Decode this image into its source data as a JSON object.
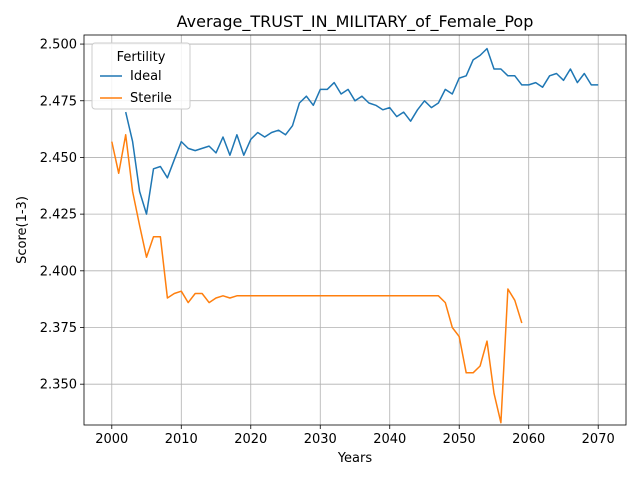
{
  "chart_data": {
    "type": "line",
    "title": "Average_TRUST_IN_MILITARY_of_Female_Pop",
    "xlabel": "Years",
    "ylabel": "Score(1-3)",
    "xlim": [
      1996,
      2074
    ],
    "ylim": [
      2.332,
      2.504
    ],
    "xticks": [
      2000,
      2010,
      2020,
      2030,
      2040,
      2050,
      2060,
      2070
    ],
    "yticks": [
      2.35,
      2.375,
      2.4,
      2.425,
      2.45,
      2.475,
      2.5
    ],
    "ytick_labels": [
      "2.350",
      "2.375",
      "2.400",
      "2.425",
      "2.450",
      "2.475",
      "2.500"
    ],
    "grid": true,
    "legend": {
      "title": "Fertility",
      "placement": "upper-left"
    },
    "series": [
      {
        "name": "Ideal",
        "color": "#1f77b4",
        "x": [
          2002,
          2003,
          2004,
          2005,
          2006,
          2007,
          2008,
          2009,
          2010,
          2011,
          2012,
          2013,
          2014,
          2015,
          2016,
          2017,
          2018,
          2019,
          2020,
          2021,
          2022,
          2023,
          2024,
          2025,
          2026,
          2027,
          2028,
          2029,
          2030,
          2031,
          2032,
          2033,
          2034,
          2035,
          2036,
          2037,
          2038,
          2039,
          2040,
          2041,
          2042,
          2043,
          2044,
          2045,
          2046,
          2047,
          2048,
          2049,
          2050,
          2051,
          2052,
          2053,
          2054,
          2055,
          2056,
          2057,
          2058,
          2059,
          2060,
          2061,
          2062,
          2063,
          2064,
          2065,
          2066,
          2067,
          2068,
          2069,
          2070
        ],
        "y": [
          2.47,
          2.457,
          2.435,
          2.425,
          2.445,
          2.446,
          2.441,
          2.449,
          2.457,
          2.454,
          2.453,
          2.454,
          2.455,
          2.452,
          2.459,
          2.451,
          2.46,
          2.451,
          2.458,
          2.461,
          2.459,
          2.461,
          2.462,
          2.46,
          2.464,
          2.474,
          2.477,
          2.473,
          2.48,
          2.48,
          2.483,
          2.478,
          2.48,
          2.475,
          2.477,
          2.474,
          2.473,
          2.471,
          2.472,
          2.468,
          2.47,
          2.466,
          2.471,
          2.475,
          2.472,
          2.474,
          2.48,
          2.478,
          2.485,
          2.486,
          2.493,
          2.495,
          2.498,
          2.489,
          2.489,
          2.486,
          2.486,
          2.482,
          2.482,
          2.483,
          2.481,
          2.486,
          2.487,
          2.484,
          2.489,
          2.483,
          2.487,
          2.482,
          2.482
        ]
      },
      {
        "name": "Sterile",
        "color": "#ff7f0e",
        "x": [
          2000,
          2001,
          2002,
          2003,
          2004,
          2005,
          2006,
          2007,
          2008,
          2009,
          2010,
          2011,
          2012,
          2013,
          2014,
          2015,
          2016,
          2017,
          2018,
          2019,
          2020,
          2021,
          2022,
          2023,
          2024,
          2025,
          2026,
          2027,
          2028,
          2029,
          2030,
          2031,
          2032,
          2033,
          2034,
          2035,
          2036,
          2037,
          2038,
          2039,
          2040,
          2041,
          2042,
          2043,
          2044,
          2045,
          2046,
          2047,
          2048,
          2049,
          2050,
          2051,
          2052,
          2053,
          2054,
          2055,
          2056,
          2057,
          2058,
          2059
        ],
        "y": [
          2.457,
          2.443,
          2.46,
          2.435,
          2.42,
          2.406,
          2.415,
          2.415,
          2.388,
          2.39,
          2.391,
          2.386,
          2.39,
          2.39,
          2.386,
          2.388,
          2.389,
          2.388,
          2.389,
          2.389,
          2.389,
          2.389,
          2.389,
          2.389,
          2.389,
          2.389,
          2.389,
          2.389,
          2.389,
          2.389,
          2.389,
          2.389,
          2.389,
          2.389,
          2.389,
          2.389,
          2.389,
          2.389,
          2.389,
          2.389,
          2.389,
          2.389,
          2.389,
          2.389,
          2.389,
          2.389,
          2.389,
          2.389,
          2.386,
          2.375,
          2.371,
          2.355,
          2.355,
          2.358,
          2.369,
          2.346,
          2.333,
          2.392,
          2.387,
          2.377
        ]
      }
    ]
  }
}
